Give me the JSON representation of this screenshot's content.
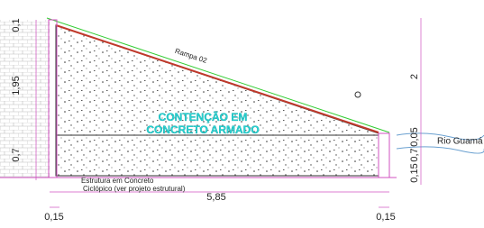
{
  "dimensions": {
    "left": [
      "0,1",
      "1,95",
      "0,7"
    ],
    "right": [
      "2",
      "0,05",
      "0,7",
      "0,15"
    ],
    "bottom_total": "5,85",
    "bottom_left": "0,15",
    "bottom_right": "0,15"
  },
  "labels": {
    "ramp": "Rampa 02",
    "title_line1": "CONTENÇÃO EM",
    "title_line2": "CONCRETO ARMADO",
    "river": "Rio Guamá",
    "note_line1": "Estrutura em Concreto",
    "note_line2": "Ciclópico (ver projeto estrutural)"
  }
}
